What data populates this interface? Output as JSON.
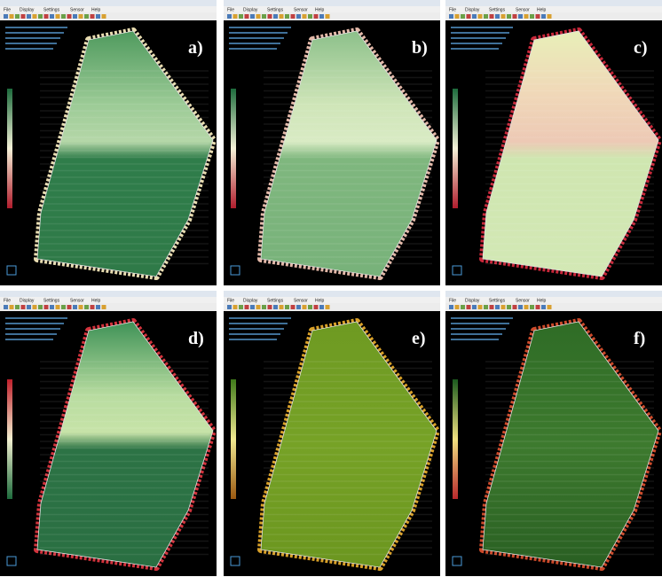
{
  "menu": [
    "File",
    "Display",
    "Settings",
    "Sensor",
    "Help"
  ],
  "panels": [
    {
      "label": "a)"
    },
    {
      "label": "b)"
    },
    {
      "label": "c)"
    },
    {
      "label": "d)"
    },
    {
      "label": "e)"
    },
    {
      "label": "f)"
    }
  ]
}
